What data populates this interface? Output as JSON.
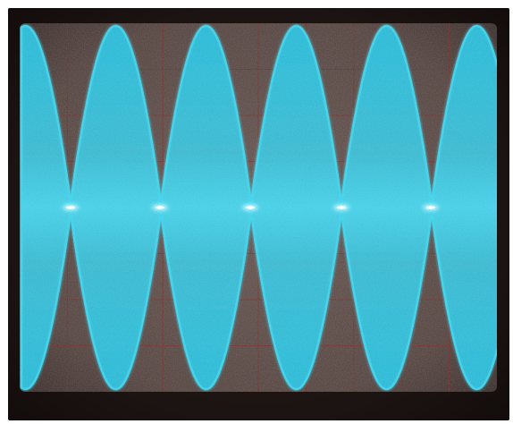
{
  "scene": {
    "subject": "oscilloscope-screen",
    "trace_color": "#3fd2ea",
    "trace_glow_color": "#bff6ff",
    "screen_color": "#5e4b48",
    "bezel_color": "#1c1412",
    "graticule_color": "#7a2f2b",
    "graticule": {
      "horizontal_divisions": 10,
      "vertical_divisions": 8
    },
    "waveform": {
      "type": "amplitude-modulated-sine",
      "envelope_peaks": 6,
      "envelope_nodes": 5
    }
  }
}
